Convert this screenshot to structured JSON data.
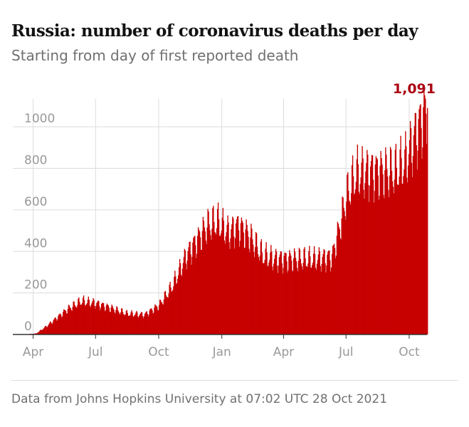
{
  "header": {
    "title": "Russia: number of coronavirus deaths per day",
    "subtitle": "Starting from day of first reported death"
  },
  "footer": {
    "source": "Data from Johns Hopkins University at 07:02 UTC 28 Oct 2021"
  },
  "colors": {
    "bars": "#c70000",
    "grid": "#dcdcdc",
    "axis": "#333333",
    "tick_text": "#999999",
    "peak_label": "#ab0613"
  },
  "chart_data": {
    "type": "bar",
    "title": "Russia: number of coronavirus deaths per day",
    "subtitle": "Starting from day of first reported death",
    "x_unit": "daily",
    "x_range": [
      "2020-03-19",
      "2021-10-27"
    ],
    "ylim": [
      0,
      1100
    ],
    "y_ticks": [
      0,
      200,
      400,
      600,
      800,
      1000
    ],
    "y_tick_labels": [
      "0",
      "200",
      "400",
      "600",
      "800",
      "1000"
    ],
    "x_tick_labels": [
      "Apr",
      "Jul",
      "Oct",
      "Jan",
      "Apr",
      "Jul",
      "Oct"
    ],
    "x_tick_dates": [
      "2020-04-01",
      "2020-07-01",
      "2020-10-01",
      "2021-01-01",
      "2021-04-01",
      "2021-07-01",
      "2021-10-01"
    ],
    "grid": "vertical and horizontal",
    "trend_points": [
      {
        "date": "2020-03-19",
        "value": 0
      },
      {
        "date": "2020-04-05",
        "value": 5
      },
      {
        "date": "2020-04-20",
        "value": 40
      },
      {
        "date": "2020-05-05",
        "value": 80
      },
      {
        "date": "2020-05-20",
        "value": 120
      },
      {
        "date": "2020-06-10",
        "value": 160
      },
      {
        "date": "2020-06-30",
        "value": 150
      },
      {
        "date": "2020-07-20",
        "value": 130
      },
      {
        "date": "2020-08-15",
        "value": 100
      },
      {
        "date": "2020-09-10",
        "value": 95
      },
      {
        "date": "2020-10-01",
        "value": 140
      },
      {
        "date": "2020-10-20",
        "value": 230
      },
      {
        "date": "2020-11-10",
        "value": 380
      },
      {
        "date": "2020-11-25",
        "value": 450
      },
      {
        "date": "2020-12-10",
        "value": 520
      },
      {
        "date": "2020-12-25",
        "value": 540
      },
      {
        "date": "2021-01-10",
        "value": 490
      },
      {
        "date": "2021-01-25",
        "value": 520
      },
      {
        "date": "2021-02-10",
        "value": 470
      },
      {
        "date": "2021-03-01",
        "value": 380
      },
      {
        "date": "2021-03-20",
        "value": 360
      },
      {
        "date": "2021-04-15",
        "value": 360
      },
      {
        "date": "2021-05-15",
        "value": 360
      },
      {
        "date": "2021-06-10",
        "value": 370
      },
      {
        "date": "2021-06-20",
        "value": 500
      },
      {
        "date": "2021-07-01",
        "value": 660
      },
      {
        "date": "2021-07-15",
        "value": 770
      },
      {
        "date": "2021-08-01",
        "value": 780
      },
      {
        "date": "2021-08-20",
        "value": 780
      },
      {
        "date": "2021-09-10",
        "value": 780
      },
      {
        "date": "2021-09-25",
        "value": 830
      },
      {
        "date": "2021-10-10",
        "value": 960
      },
      {
        "date": "2021-10-27",
        "value": 1091
      }
    ],
    "annotation": {
      "label": "1,091",
      "date": "2021-10-27",
      "value": 1091
    }
  }
}
